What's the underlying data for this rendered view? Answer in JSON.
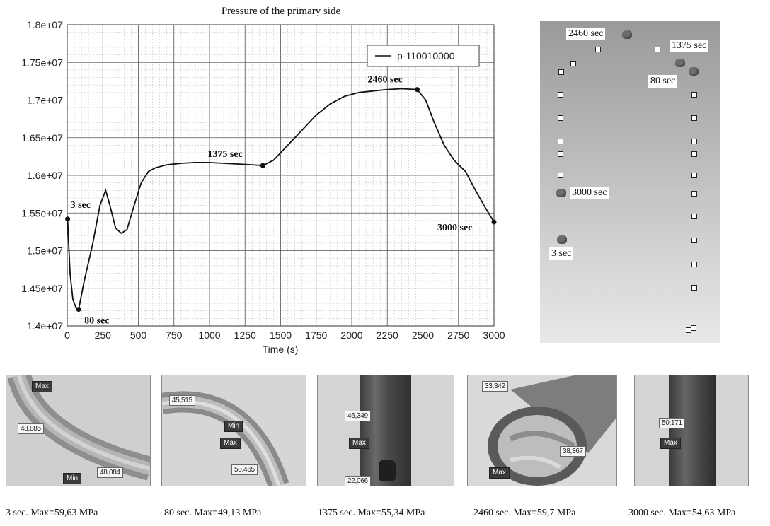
{
  "chart_data": {
    "type": "line",
    "title": "Pressure of the primary side",
    "xlabel": "Time (s)",
    "ylabel": "",
    "xlim": [
      0,
      3000
    ],
    "ylim": [
      14000000,
      18000000
    ],
    "x_ticks": [
      0,
      250,
      500,
      750,
      1000,
      1250,
      1500,
      1750,
      2000,
      2250,
      2500,
      2750,
      3000
    ],
    "x_tick_labels": [
      "0",
      "250",
      "500",
      "750",
      "1000",
      "1250",
      "1500",
      "1750",
      "2000",
      "2250",
      "2500",
      "2750",
      "3000"
    ],
    "y_ticks": [
      14000000,
      14500000,
      15000000,
      15500000,
      16000000,
      16500000,
      17000000,
      17500000,
      18000000
    ],
    "y_tick_labels": [
      "1.4e+07",
      "1.45e+07",
      "1.5e+07",
      "1.55e+07",
      "1.6e+07",
      "1.65e+07",
      "1.7e+07",
      "1.75e+07",
      "1.8e+07"
    ],
    "grid": true,
    "legend_position": "top-right",
    "series": [
      {
        "name": "p-110010000",
        "x": [
          0,
          3,
          10,
          20,
          40,
          60,
          80,
          120,
          180,
          230,
          270,
          300,
          340,
          380,
          420,
          470,
          520,
          570,
          620,
          700,
          800,
          900,
          1000,
          1100,
          1200,
          1300,
          1375,
          1450,
          1550,
          1650,
          1750,
          1850,
          1950,
          2050,
          2150,
          2250,
          2350,
          2460,
          2520,
          2580,
          2650,
          2720,
          2800,
          2870,
          2930,
          3000
        ],
        "values": [
          15420000,
          15410000,
          15100000,
          14700000,
          14350000,
          14250000,
          14220000,
          14600000,
          15100000,
          15600000,
          15800000,
          15600000,
          15300000,
          15230000,
          15280000,
          15600000,
          15900000,
          16050000,
          16100000,
          16140000,
          16160000,
          16170000,
          16170000,
          16160000,
          16150000,
          16140000,
          16130000,
          16200000,
          16400000,
          16600000,
          16800000,
          16950000,
          17050000,
          17100000,
          17120000,
          17140000,
          17150000,
          17140000,
          17000000,
          16700000,
          16400000,
          16200000,
          16050000,
          15800000,
          15600000,
          15380000
        ],
        "color": "#111111"
      }
    ],
    "annotations": [
      {
        "x": 3,
        "y": 15420000,
        "text": "3 sec"
      },
      {
        "x": 80,
        "y": 14220000,
        "text": "80 sec"
      },
      {
        "x": 1375,
        "y": 16130000,
        "text": "1375 sec"
      },
      {
        "x": 2460,
        "y": 17140000,
        "text": "2460 sec"
      },
      {
        "x": 3000,
        "y": 15380000,
        "text": "3000 sec"
      }
    ]
  },
  "model_panel": {
    "labels": [
      "2460 sec",
      "1375 sec",
      "80 sec",
      "3000 sec",
      "3 sec"
    ]
  },
  "thumbnails": [
    {
      "caption": "3 sec. Max=59,63 MPa",
      "probes": [
        "48,885",
        "48,084"
      ],
      "markers": [
        "Max",
        "Min"
      ]
    },
    {
      "caption": "80 sec. Max=49,13 MPa",
      "probes": [
        "45,515",
        "50,465"
      ],
      "markers": [
        "Min",
        "Max"
      ]
    },
    {
      "caption": "1375 sec. Max=55,34 MPa",
      "probes": [
        "46,349",
        "22,066"
      ],
      "markers": [
        "Max"
      ]
    },
    {
      "caption": "2460 sec. Max=59,7 MPa",
      "probes": [
        "33,342",
        "38,367"
      ],
      "markers": [
        "Max"
      ]
    },
    {
      "caption": "3000 sec. Max=54,63 MPa",
      "probes": [
        "50,171"
      ],
      "markers": [
        "Max"
      ]
    }
  ]
}
